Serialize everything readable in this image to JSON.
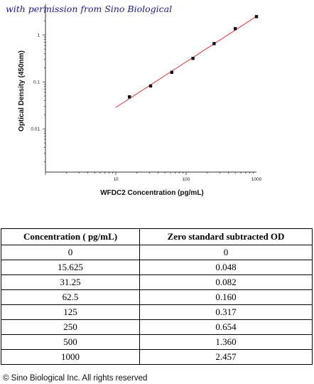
{
  "watermark": "with permission from Sino Biological",
  "chart_data": {
    "type": "scatter",
    "xlabel": "WFDC2 Concentration (pg/mL)",
    "ylabel": "Optical Density (450nm)",
    "xscale": "log",
    "yscale": "log",
    "xlim": [
      1,
      1000
    ],
    "ylim": [
      0.0012,
      4.5
    ],
    "x_ticks": [
      10,
      100,
      1000
    ],
    "x_tick_labels": [
      "10",
      "100",
      "1000"
    ],
    "y_ticks": [
      0.01,
      0.1,
      1
    ],
    "y_tick_labels": [
      "0.01",
      "0.1",
      "1"
    ],
    "points": [
      {
        "x": 15.625,
        "y": 0.048
      },
      {
        "x": 31.25,
        "y": 0.082
      },
      {
        "x": 62.5,
        "y": 0.16
      },
      {
        "x": 125,
        "y": 0.317
      },
      {
        "x": 250,
        "y": 0.654
      },
      {
        "x": 500,
        "y": 1.36
      },
      {
        "x": 1000,
        "y": 2.457
      }
    ],
    "fit_line": {
      "color": "#e8312e",
      "x_from": 10,
      "x_to": 1000
    },
    "marker_color": "#111111",
    "grid": false
  },
  "table": {
    "headers": [
      "Concentration ( pg/mL)",
      "Zero standard subtracted OD"
    ],
    "rows": [
      [
        "0",
        "0"
      ],
      [
        "15.625",
        "0.048"
      ],
      [
        "31.25",
        "0.082"
      ],
      [
        "62.5",
        "0.160"
      ],
      [
        "125",
        "0.317"
      ],
      [
        "250",
        "0.654"
      ],
      [
        "500",
        "1.360"
      ],
      [
        "1000",
        "2.457"
      ]
    ]
  },
  "copyright": "© Sino Biological Inc. All rights reserved"
}
